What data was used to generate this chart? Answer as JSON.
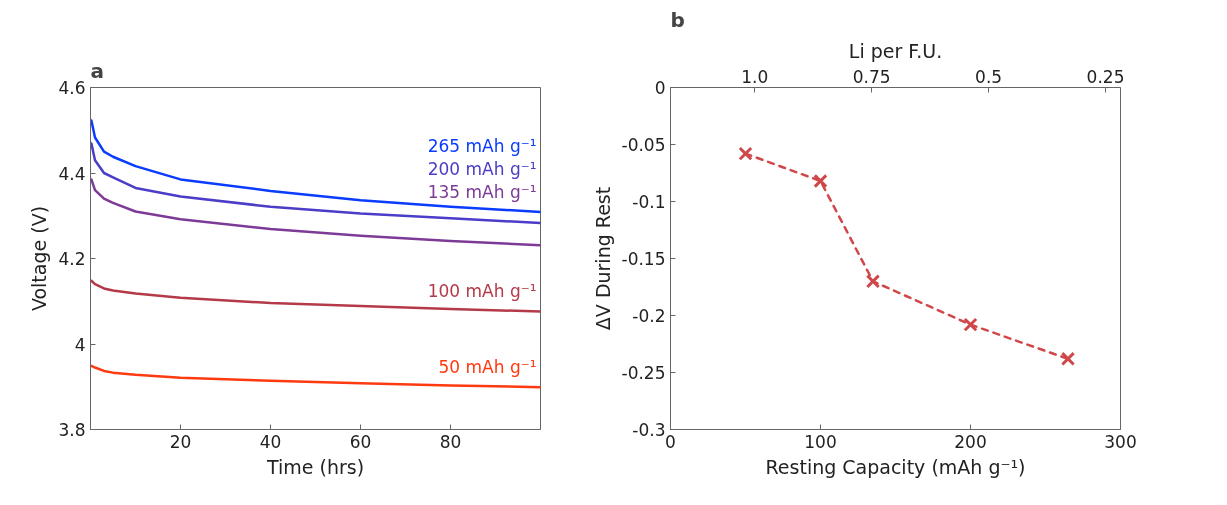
{
  "chart_data": [
    {
      "type": "line",
      "title": "a",
      "xlabel": "Time (hrs)",
      "ylabel": "Voltage (V)",
      "x": [
        0.2,
        1,
        3,
        5,
        10,
        20,
        40,
        60,
        80,
        100
      ],
      "xlim": [
        0,
        100
      ],
      "ylim": [
        3.8,
        4.6
      ],
      "xticks": [
        20,
        40,
        60,
        80
      ],
      "yticks": [
        3.8,
        4,
        4.2,
        4.4,
        4.6
      ],
      "series": [
        {
          "name": "265 mAh g⁻¹",
          "color": "#0a3cff",
          "values": [
            4.523,
            4.483,
            4.45,
            4.438,
            4.416,
            4.385,
            4.358,
            4.336,
            4.321,
            4.309
          ]
        },
        {
          "name": "200 mAh g⁻¹",
          "color": "#4a3dc8",
          "values": [
            4.469,
            4.43,
            4.4,
            4.39,
            4.365,
            4.345,
            4.321,
            4.305,
            4.294,
            4.283
          ]
        },
        {
          "name": "135 mAh g⁻¹",
          "color": "#7d3a96",
          "values": [
            4.385,
            4.36,
            4.34,
            4.33,
            4.31,
            4.292,
            4.269,
            4.253,
            4.241,
            4.231
          ]
        },
        {
          "name": "100 mAh g⁻¹",
          "color": "#b43a4a",
          "values": [
            4.148,
            4.14,
            4.13,
            4.125,
            4.118,
            4.108,
            4.096,
            4.089,
            4.082,
            4.076
          ]
        },
        {
          "name": "50 mAh g⁻¹",
          "color": "#ff3a10",
          "values": [
            3.949,
            3.945,
            3.937,
            3.933,
            3.928,
            3.921,
            3.914,
            3.908,
            3.903,
            3.899
          ]
        }
      ]
    },
    {
      "type": "line",
      "title": "b",
      "xlabel": "Resting Capacity (mAh g⁻¹)",
      "ylabel": "ΔV During Rest",
      "x2label": "Li per F.U.",
      "x": [
        50,
        100,
        135,
        200,
        265
      ],
      "xlim": [
        0,
        300
      ],
      "ylim": [
        -0.3,
        0
      ],
      "xticks": [
        0,
        100,
        200,
        300
      ],
      "yticks": [
        -0.3,
        -0.25,
        -0.2,
        -0.15,
        -0.1,
        -0.05,
        0
      ],
      "x2lim": [
        1.18,
        0.218
      ],
      "x2ticks": [
        {
          "value": 1,
          "label": "1.0"
        },
        0.75,
        0.5,
        0.25
      ],
      "marker": "cross",
      "line_style": "dashed",
      "series": [
        {
          "color": "#d0474a",
          "values": [
            -0.058,
            -0.082,
            -0.17,
            -0.208,
            -0.238
          ]
        }
      ]
    }
  ]
}
